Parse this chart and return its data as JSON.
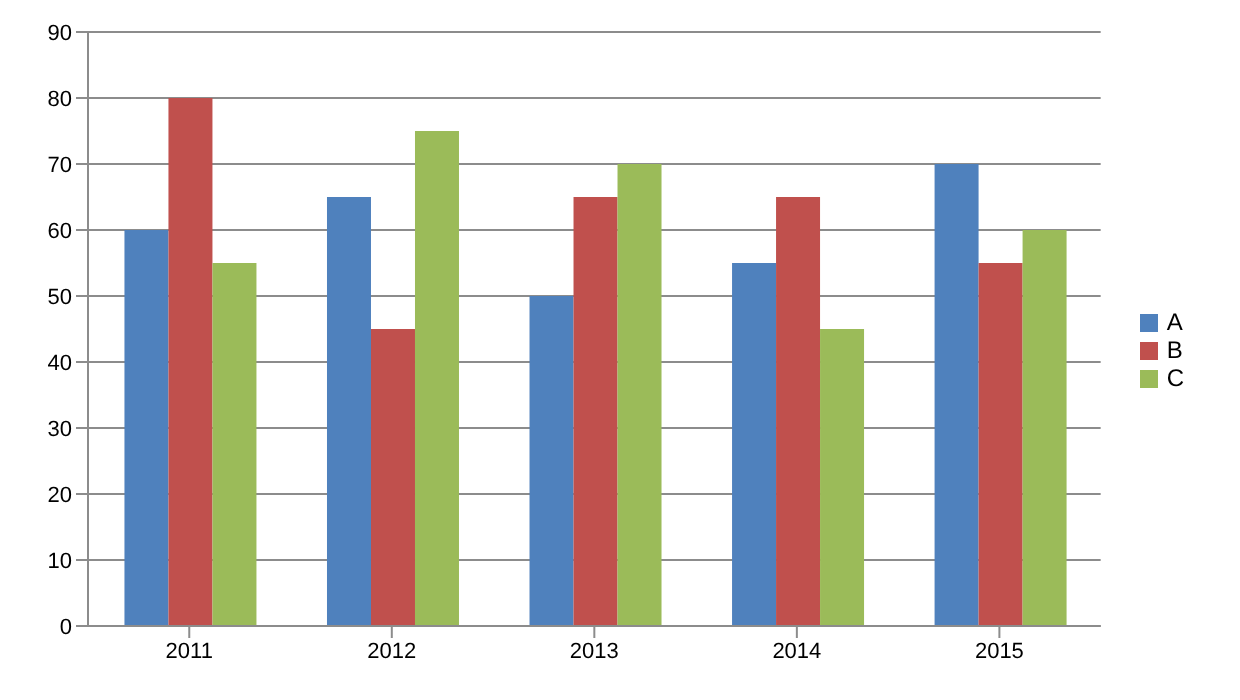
{
  "chart_data": {
    "type": "bar",
    "categories": [
      "2011",
      "2012",
      "2013",
      "2014",
      "2015"
    ],
    "series": [
      {
        "name": "A",
        "color": "#4f81bd",
        "values": [
          60,
          65,
          50,
          55,
          70
        ]
      },
      {
        "name": "B",
        "color": "#c0504d",
        "values": [
          80,
          45,
          65,
          65,
          55
        ]
      },
      {
        "name": "C",
        "color": "#9bbb59",
        "values": [
          55,
          75,
          70,
          45,
          60
        ]
      }
    ],
    "ylim": [
      0,
      90
    ],
    "yticks": [
      0,
      10,
      20,
      30,
      40,
      50,
      60,
      70,
      80,
      90
    ],
    "grid": "y",
    "legend": "right"
  }
}
